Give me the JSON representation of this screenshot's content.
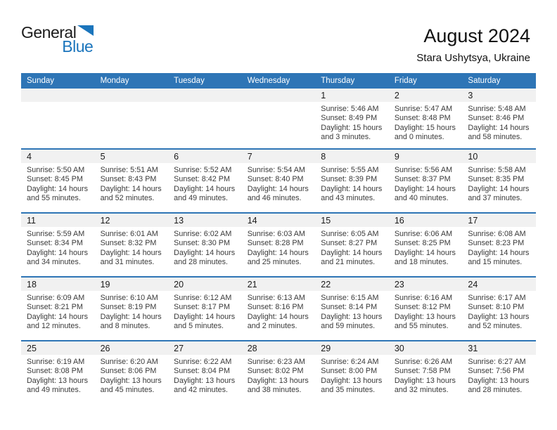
{
  "logo": {
    "word1": "General",
    "word2": "Blue"
  },
  "header": {
    "title": "August 2024",
    "subtitle": "Stara Ushytsya, Ukraine"
  },
  "colors": {
    "header_blue": "#2e75b6",
    "divider_blue": "#2e75b6",
    "band_gray": "#f1f1f1",
    "logo_blue": "#1b75bc",
    "dow_text": "#ffffff"
  },
  "calendar": {
    "day_headers": [
      "Sunday",
      "Monday",
      "Tuesday",
      "Wednesday",
      "Thursday",
      "Friday",
      "Saturday"
    ],
    "weeks": [
      [
        null,
        null,
        null,
        null,
        {
          "num": "1",
          "sunrise": "Sunrise: 5:46 AM",
          "sunset": "Sunset: 8:49 PM",
          "daylight1": "Daylight: 15 hours",
          "daylight2": "and 3 minutes."
        },
        {
          "num": "2",
          "sunrise": "Sunrise: 5:47 AM",
          "sunset": "Sunset: 8:48 PM",
          "daylight1": "Daylight: 15 hours",
          "daylight2": "and 0 minutes."
        },
        {
          "num": "3",
          "sunrise": "Sunrise: 5:48 AM",
          "sunset": "Sunset: 8:46 PM",
          "daylight1": "Daylight: 14 hours",
          "daylight2": "and 58 minutes."
        }
      ],
      [
        {
          "num": "4",
          "sunrise": "Sunrise: 5:50 AM",
          "sunset": "Sunset: 8:45 PM",
          "daylight1": "Daylight: 14 hours",
          "daylight2": "and 55 minutes."
        },
        {
          "num": "5",
          "sunrise": "Sunrise: 5:51 AM",
          "sunset": "Sunset: 8:43 PM",
          "daylight1": "Daylight: 14 hours",
          "daylight2": "and 52 minutes."
        },
        {
          "num": "6",
          "sunrise": "Sunrise: 5:52 AM",
          "sunset": "Sunset: 8:42 PM",
          "daylight1": "Daylight: 14 hours",
          "daylight2": "and 49 minutes."
        },
        {
          "num": "7",
          "sunrise": "Sunrise: 5:54 AM",
          "sunset": "Sunset: 8:40 PM",
          "daylight1": "Daylight: 14 hours",
          "daylight2": "and 46 minutes."
        },
        {
          "num": "8",
          "sunrise": "Sunrise: 5:55 AM",
          "sunset": "Sunset: 8:39 PM",
          "daylight1": "Daylight: 14 hours",
          "daylight2": "and 43 minutes."
        },
        {
          "num": "9",
          "sunrise": "Sunrise: 5:56 AM",
          "sunset": "Sunset: 8:37 PM",
          "daylight1": "Daylight: 14 hours",
          "daylight2": "and 40 minutes."
        },
        {
          "num": "10",
          "sunrise": "Sunrise: 5:58 AM",
          "sunset": "Sunset: 8:35 PM",
          "daylight1": "Daylight: 14 hours",
          "daylight2": "and 37 minutes."
        }
      ],
      [
        {
          "num": "11",
          "sunrise": "Sunrise: 5:59 AM",
          "sunset": "Sunset: 8:34 PM",
          "daylight1": "Daylight: 14 hours",
          "daylight2": "and 34 minutes."
        },
        {
          "num": "12",
          "sunrise": "Sunrise: 6:01 AM",
          "sunset": "Sunset: 8:32 PM",
          "daylight1": "Daylight: 14 hours",
          "daylight2": "and 31 minutes."
        },
        {
          "num": "13",
          "sunrise": "Sunrise: 6:02 AM",
          "sunset": "Sunset: 8:30 PM",
          "daylight1": "Daylight: 14 hours",
          "daylight2": "and 28 minutes."
        },
        {
          "num": "14",
          "sunrise": "Sunrise: 6:03 AM",
          "sunset": "Sunset: 8:28 PM",
          "daylight1": "Daylight: 14 hours",
          "daylight2": "and 25 minutes."
        },
        {
          "num": "15",
          "sunrise": "Sunrise: 6:05 AM",
          "sunset": "Sunset: 8:27 PM",
          "daylight1": "Daylight: 14 hours",
          "daylight2": "and 21 minutes."
        },
        {
          "num": "16",
          "sunrise": "Sunrise: 6:06 AM",
          "sunset": "Sunset: 8:25 PM",
          "daylight1": "Daylight: 14 hours",
          "daylight2": "and 18 minutes."
        },
        {
          "num": "17",
          "sunrise": "Sunrise: 6:08 AM",
          "sunset": "Sunset: 8:23 PM",
          "daylight1": "Daylight: 14 hours",
          "daylight2": "and 15 minutes."
        }
      ],
      [
        {
          "num": "18",
          "sunrise": "Sunrise: 6:09 AM",
          "sunset": "Sunset: 8:21 PM",
          "daylight1": "Daylight: 14 hours",
          "daylight2": "and 12 minutes."
        },
        {
          "num": "19",
          "sunrise": "Sunrise: 6:10 AM",
          "sunset": "Sunset: 8:19 PM",
          "daylight1": "Daylight: 14 hours",
          "daylight2": "and 8 minutes."
        },
        {
          "num": "20",
          "sunrise": "Sunrise: 6:12 AM",
          "sunset": "Sunset: 8:17 PM",
          "daylight1": "Daylight: 14 hours",
          "daylight2": "and 5 minutes."
        },
        {
          "num": "21",
          "sunrise": "Sunrise: 6:13 AM",
          "sunset": "Sunset: 8:16 PM",
          "daylight1": "Daylight: 14 hours",
          "daylight2": "and 2 minutes."
        },
        {
          "num": "22",
          "sunrise": "Sunrise: 6:15 AM",
          "sunset": "Sunset: 8:14 PM",
          "daylight1": "Daylight: 13 hours",
          "daylight2": "and 59 minutes."
        },
        {
          "num": "23",
          "sunrise": "Sunrise: 6:16 AM",
          "sunset": "Sunset: 8:12 PM",
          "daylight1": "Daylight: 13 hours",
          "daylight2": "and 55 minutes."
        },
        {
          "num": "24",
          "sunrise": "Sunrise: 6:17 AM",
          "sunset": "Sunset: 8:10 PM",
          "daylight1": "Daylight: 13 hours",
          "daylight2": "and 52 minutes."
        }
      ],
      [
        {
          "num": "25",
          "sunrise": "Sunrise: 6:19 AM",
          "sunset": "Sunset: 8:08 PM",
          "daylight1": "Daylight: 13 hours",
          "daylight2": "and 49 minutes."
        },
        {
          "num": "26",
          "sunrise": "Sunrise: 6:20 AM",
          "sunset": "Sunset: 8:06 PM",
          "daylight1": "Daylight: 13 hours",
          "daylight2": "and 45 minutes."
        },
        {
          "num": "27",
          "sunrise": "Sunrise: 6:22 AM",
          "sunset": "Sunset: 8:04 PM",
          "daylight1": "Daylight: 13 hours",
          "daylight2": "and 42 minutes."
        },
        {
          "num": "28",
          "sunrise": "Sunrise: 6:23 AM",
          "sunset": "Sunset: 8:02 PM",
          "daylight1": "Daylight: 13 hours",
          "daylight2": "and 38 minutes."
        },
        {
          "num": "29",
          "sunrise": "Sunrise: 6:24 AM",
          "sunset": "Sunset: 8:00 PM",
          "daylight1": "Daylight: 13 hours",
          "daylight2": "and 35 minutes."
        },
        {
          "num": "30",
          "sunrise": "Sunrise: 6:26 AM",
          "sunset": "Sunset: 7:58 PM",
          "daylight1": "Daylight: 13 hours",
          "daylight2": "and 32 minutes."
        },
        {
          "num": "31",
          "sunrise": "Sunrise: 6:27 AM",
          "sunset": "Sunset: 7:56 PM",
          "daylight1": "Daylight: 13 hours",
          "daylight2": "and 28 minutes."
        }
      ]
    ]
  }
}
